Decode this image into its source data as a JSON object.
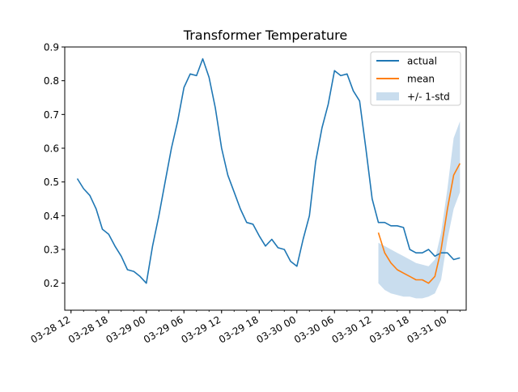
{
  "chart_data": {
    "type": "line",
    "title": "Transformer Temperature",
    "xlabel": "",
    "ylabel": "",
    "x_ticks": [
      "03-28 12",
      "03-28 18",
      "03-29 00",
      "03-29 06",
      "03-29 12",
      "03-29 18",
      "03-30 00",
      "03-30 06",
      "03-30 12",
      "03-30 18",
      "03-31 00"
    ],
    "y_ticks": [
      "0.2",
      "0.3",
      "0.4",
      "0.5",
      "0.6",
      "0.7",
      "0.8",
      "0.9"
    ],
    "ylim": [
      0.12,
      0.9
    ],
    "xlim": [
      "2024-03-28 11:00",
      "2024-03-31 03:00"
    ],
    "legend": {
      "placement": "top-right"
    },
    "grid": false,
    "series": [
      {
        "name": "actual",
        "color": "#1f77b4",
        "points": [
          [
            "2024-03-28 13:00",
            0.51
          ],
          [
            "2024-03-28 14:00",
            0.48
          ],
          [
            "2024-03-28 15:00",
            0.46
          ],
          [
            "2024-03-28 16:00",
            0.42
          ],
          [
            "2024-03-28 17:00",
            0.36
          ],
          [
            "2024-03-28 18:00",
            0.345
          ],
          [
            "2024-03-28 19:00",
            0.31
          ],
          [
            "2024-03-28 20:00",
            0.28
          ],
          [
            "2024-03-28 21:00",
            0.24
          ],
          [
            "2024-03-28 22:00",
            0.235
          ],
          [
            "2024-03-28 23:00",
            0.22
          ],
          [
            "2024-03-29 00:00",
            0.2
          ],
          [
            "2024-03-29 01:00",
            0.31
          ],
          [
            "2024-03-29 02:00",
            0.4
          ],
          [
            "2024-03-29 03:00",
            0.5
          ],
          [
            "2024-03-29 04:00",
            0.6
          ],
          [
            "2024-03-29 05:00",
            0.68
          ],
          [
            "2024-03-29 06:00",
            0.78
          ],
          [
            "2024-03-29 07:00",
            0.82
          ],
          [
            "2024-03-29 08:00",
            0.815
          ],
          [
            "2024-03-29 09:00",
            0.865
          ],
          [
            "2024-03-29 10:00",
            0.81
          ],
          [
            "2024-03-29 11:00",
            0.72
          ],
          [
            "2024-03-29 12:00",
            0.6
          ],
          [
            "2024-03-29 13:00",
            0.52
          ],
          [
            "2024-03-29 14:00",
            0.47
          ],
          [
            "2024-03-29 15:00",
            0.42
          ],
          [
            "2024-03-29 16:00",
            0.38
          ],
          [
            "2024-03-29 17:00",
            0.375
          ],
          [
            "2024-03-29 18:00",
            0.34
          ],
          [
            "2024-03-29 19:00",
            0.31
          ],
          [
            "2024-03-29 20:00",
            0.33
          ],
          [
            "2024-03-29 21:00",
            0.305
          ],
          [
            "2024-03-29 22:00",
            0.3
          ],
          [
            "2024-03-29 23:00",
            0.265
          ],
          [
            "2024-03-30 00:00",
            0.25
          ],
          [
            "2024-03-30 01:00",
            0.33
          ],
          [
            "2024-03-30 02:00",
            0.4
          ],
          [
            "2024-03-30 03:00",
            0.56
          ],
          [
            "2024-03-30 04:00",
            0.66
          ],
          [
            "2024-03-30 05:00",
            0.73
          ],
          [
            "2024-03-30 06:00",
            0.83
          ],
          [
            "2024-03-30 07:00",
            0.815
          ],
          [
            "2024-03-30 08:00",
            0.82
          ],
          [
            "2024-03-30 09:00",
            0.77
          ],
          [
            "2024-03-30 10:00",
            0.74
          ],
          [
            "2024-03-30 11:00",
            0.6
          ],
          [
            "2024-03-30 12:00",
            0.45
          ],
          [
            "2024-03-30 13:00",
            0.38
          ],
          [
            "2024-03-30 14:00",
            0.38
          ],
          [
            "2024-03-30 15:00",
            0.37
          ],
          [
            "2024-03-30 16:00",
            0.37
          ],
          [
            "2024-03-30 17:00",
            0.365
          ],
          [
            "2024-03-30 18:00",
            0.3
          ],
          [
            "2024-03-30 19:00",
            0.29
          ],
          [
            "2024-03-30 20:00",
            0.29
          ],
          [
            "2024-03-30 21:00",
            0.3
          ],
          [
            "2024-03-30 22:00",
            0.28
          ],
          [
            "2024-03-30 23:00",
            0.29
          ],
          [
            "2024-03-31 00:00",
            0.29
          ],
          [
            "2024-03-31 01:00",
            0.27
          ],
          [
            "2024-03-31 02:00",
            0.275
          ]
        ]
      },
      {
        "name": "mean",
        "color": "#ff7f0e",
        "points": [
          [
            "2024-03-30 13:00",
            0.35
          ],
          [
            "2024-03-30 14:00",
            0.29
          ],
          [
            "2024-03-30 15:00",
            0.26
          ],
          [
            "2024-03-30 16:00",
            0.24
          ],
          [
            "2024-03-30 17:00",
            0.23
          ],
          [
            "2024-03-30 18:00",
            0.22
          ],
          [
            "2024-03-30 19:00",
            0.21
          ],
          [
            "2024-03-30 20:00",
            0.21
          ],
          [
            "2024-03-30 21:00",
            0.2
          ],
          [
            "2024-03-30 22:00",
            0.22
          ],
          [
            "2024-03-30 23:00",
            0.3
          ],
          [
            "2024-03-31 00:00",
            0.42
          ],
          [
            "2024-03-31 01:00",
            0.52
          ],
          [
            "2024-03-31 02:00",
            0.555
          ]
        ]
      },
      {
        "name": "+/- 1-std",
        "type": "band",
        "color": "#c9ddee",
        "upper": [
          0.32,
          0.31,
          0.3,
          0.29,
          0.28,
          0.27,
          0.26,
          0.255,
          0.25,
          0.27,
          0.35,
          0.48,
          0.63,
          0.68
        ],
        "lower": [
          0.2,
          0.18,
          0.17,
          0.165,
          0.16,
          0.16,
          0.155,
          0.155,
          0.16,
          0.17,
          0.21,
          0.33,
          0.42,
          0.47
        ]
      }
    ]
  }
}
